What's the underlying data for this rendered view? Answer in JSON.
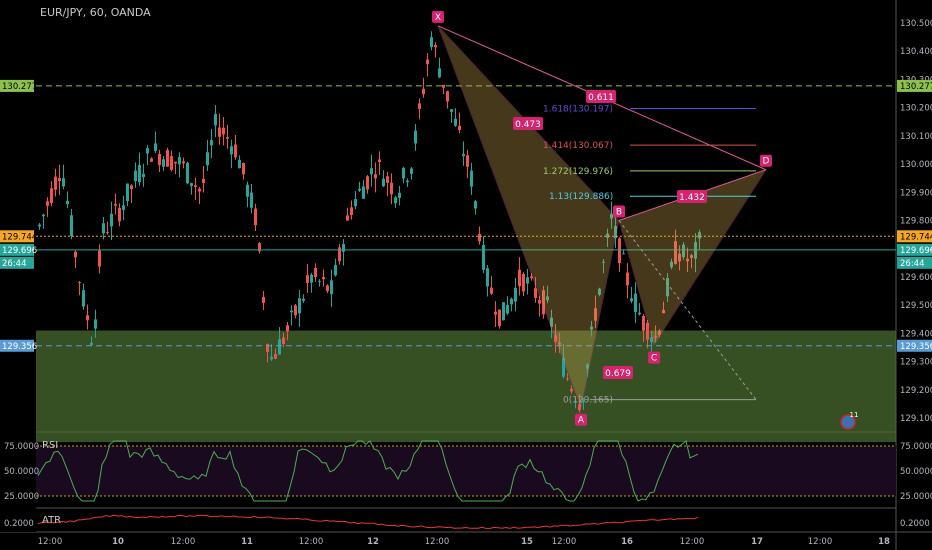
{
  "header": {
    "symbol": "EUR/JPY, 60, OANDA"
  },
  "price_axis": {
    "ticks": [
      "130.500",
      "130.400",
      "130.300",
      "130.200",
      "130.100",
      "130.000",
      "129.900",
      "129.800",
      "129.700",
      "129.600",
      "129.500",
      "129.400",
      "129.300",
      "129.200",
      "129.100"
    ],
    "tags": [
      {
        "text": "130.277",
        "value": 130.277,
        "color": "#8bc34a",
        "fg": "#000"
      },
      {
        "text": "129.744",
        "value": 129.744,
        "color": "#f5a623",
        "fg": "#000"
      },
      {
        "text": "129.696",
        "value": 129.696,
        "color": "#26a69a",
        "fg": "#fff"
      },
      {
        "text": "26:44",
        "value": 129.65,
        "color": "#26a69a",
        "fg": "#fff"
      },
      {
        "text": "129.356",
        "value": 129.356,
        "color": "#5b9bd5",
        "fg": "#fff"
      }
    ]
  },
  "time_axis": {
    "labels": [
      "12:00",
      "10",
      "12:00",
      "11",
      "12:00",
      "12",
      "12:00",
      "15",
      "12:00",
      "16",
      "12:00",
      "17",
      "12:00",
      "18"
    ]
  },
  "rsi": {
    "label": "RSI",
    "ticks": [
      "75.0000",
      "50.0000",
      "25.0000"
    ]
  },
  "atr": {
    "label": "ATR",
    "ticks": [
      "0.2000"
    ]
  },
  "chart_data": {
    "type": "candlestick",
    "title": "EUR/JPY, 60, OANDA",
    "ylim": [
      129.05,
      130.53
    ],
    "horizontal_lines": [
      {
        "value": 130.277,
        "color": "#8bc34a",
        "style": "dashed"
      },
      {
        "value": 129.744,
        "color": "#f5a623",
        "style": "dotted"
      },
      {
        "value": 129.696,
        "color": "#26a69a",
        "style": "solid"
      },
      {
        "value": 129.356,
        "color": "#5b9bd5",
        "style": "dashed"
      }
    ],
    "zone": {
      "from": 129.05,
      "to": 129.41,
      "color": "#4a6b2f"
    },
    "harmonic_points": [
      {
        "label": "X",
        "x": "12 12:00",
        "y": 130.49
      },
      {
        "label": "A",
        "x": "15 16:00",
        "y": 129.14
      },
      {
        "label": "B",
        "x": "15 23:00",
        "y": 129.8
      },
      {
        "label": "C",
        "x": "16 07:00",
        "y": 129.36
      },
      {
        "label": "D",
        "x": "17 04:00",
        "y": 129.98
      }
    ],
    "ratios": [
      "0.473",
      "0.611",
      "0.679",
      "1.432"
    ],
    "fib_levels": [
      {
        "label": "1.618(130.197)",
        "value": 130.197,
        "color": "#5c4bdb"
      },
      {
        "label": "1.414(130.067)",
        "value": 130.067,
        "color": "#e05252"
      },
      {
        "label": "1.272(129.976)",
        "value": 129.976,
        "color": "#9ccc65"
      },
      {
        "label": "1.13(129.886)",
        "value": 129.886,
        "color": "#4dd0e1"
      },
      {
        "label": "0(129.165)",
        "value": 129.165,
        "color": "#9e9e9e"
      }
    ],
    "rsi_levels": [
      75,
      25
    ],
    "atr_level": 0.2,
    "badge": "11"
  }
}
